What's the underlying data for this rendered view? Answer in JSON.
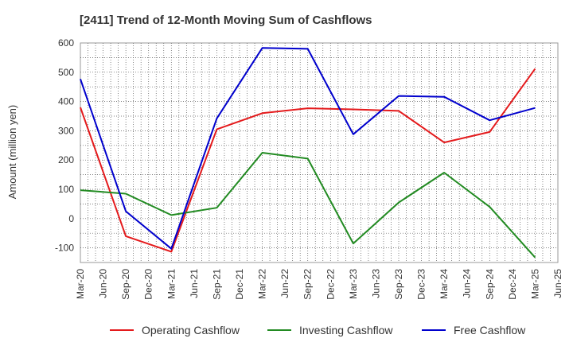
{
  "chart_data": {
    "type": "line",
    "title": "[2411]  Trend of 12-Month Moving Sum of Cashflows",
    "xlabel": "",
    "ylabel": "Amount (million yen)",
    "ylim": [
      -150,
      600
    ],
    "yticks": [
      -100,
      0,
      100,
      200,
      300,
      400,
      500,
      600
    ],
    "categories": [
      "Mar-20",
      "Jun-20",
      "Sep-20",
      "Dec-20",
      "Mar-21",
      "Jun-21",
      "Sep-21",
      "Dec-21",
      "Mar-22",
      "Jun-22",
      "Sep-22",
      "Dec-22",
      "Mar-23",
      "Jun-23",
      "Sep-23",
      "Dec-23",
      "Mar-24",
      "Jun-24",
      "Sep-24",
      "Dec-24",
      "Mar-25",
      "Jun-25"
    ],
    "grid": true,
    "legend_position": "bottom",
    "series": [
      {
        "name": "Operating Cashflow",
        "color": "#e41a1c",
        "values": [
          380,
          null,
          -60,
          null,
          -113,
          null,
          305,
          null,
          360,
          null,
          377,
          null,
          373,
          null,
          368,
          null,
          260,
          null,
          296,
          null,
          512,
          null
        ]
      },
      {
        "name": "Investing Cashflow",
        "color": "#228b22",
        "values": [
          97,
          null,
          85,
          null,
          12,
          null,
          37,
          null,
          225,
          null,
          205,
          null,
          -85,
          null,
          55,
          null,
          157,
          null,
          40,
          null,
          -133,
          null
        ]
      },
      {
        "name": "Free Cashflow",
        "color": "#0000cd",
        "values": [
          477,
          null,
          25,
          null,
          -103,
          null,
          342,
          null,
          583,
          null,
          580,
          null,
          288,
          null,
          419,
          null,
          416,
          null,
          336,
          null,
          378,
          null
        ]
      }
    ]
  }
}
